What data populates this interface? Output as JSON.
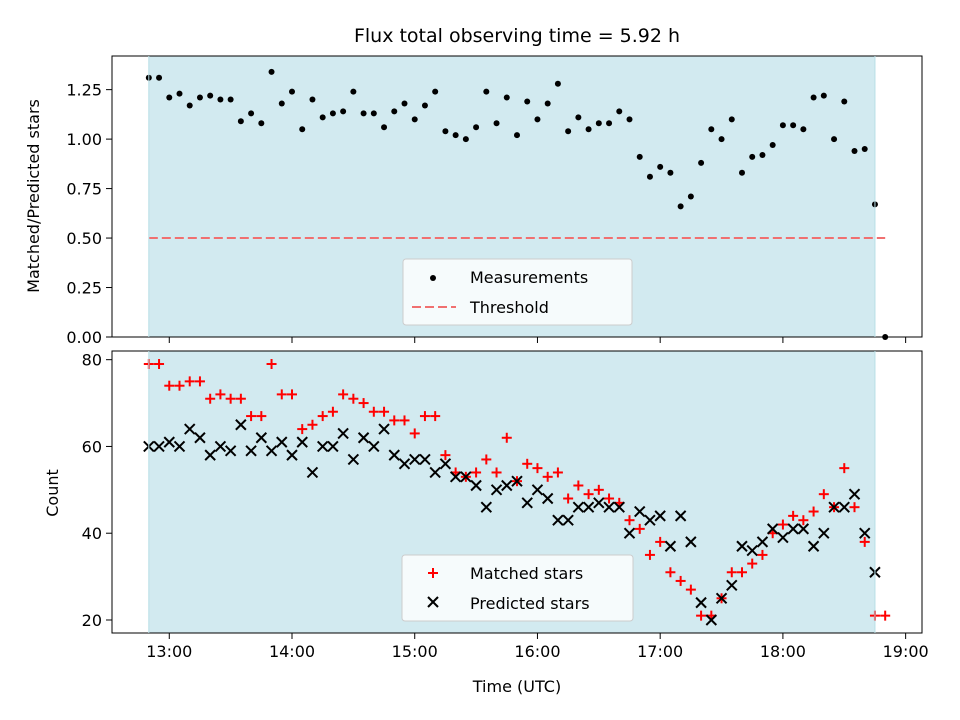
{
  "colors": {
    "observing_band": "#d2eaf0",
    "measurement": "#000000",
    "threshold": "#f07070",
    "matched": "#ff0000",
    "predicted": "#000000"
  },
  "chart_data": [
    {
      "type": "scatter",
      "title": "Flux total observing time = 5.92 h",
      "xlabel": "",
      "ylabel": "Matched/Predicted stars",
      "xlim": [
        "12:32",
        "19:08"
      ],
      "ylim": [
        0,
        1.42
      ],
      "x_ticks": [
        "13:00",
        "14:00",
        "15:00",
        "16:00",
        "17:00",
        "18:00",
        "19:00"
      ],
      "y_ticks": [
        "0.00",
        "0.25",
        "0.50",
        "0.75",
        "1.00",
        "1.25"
      ],
      "observing_band": [
        "12:50",
        "18:45"
      ],
      "threshold": 0.5,
      "legend": {
        "placement": "lower-center",
        "entries": [
          "Measurements",
          "Threshold"
        ]
      },
      "series": [
        {
          "name": "Measurements",
          "x": [
            "12:50",
            "12:55",
            "13:00",
            "13:05",
            "13:10",
            "13:15",
            "13:20",
            "13:25",
            "13:30",
            "13:35",
            "13:40",
            "13:45",
            "13:50",
            "13:55",
            "14:00",
            "14:05",
            "14:10",
            "14:15",
            "14:20",
            "14:25",
            "14:30",
            "14:35",
            "14:40",
            "14:45",
            "14:50",
            "14:55",
            "15:00",
            "15:05",
            "15:10",
            "15:15",
            "15:20",
            "15:25",
            "15:30",
            "15:35",
            "15:40",
            "15:45",
            "15:50",
            "15:55",
            "16:00",
            "16:05",
            "16:10",
            "16:15",
            "16:20",
            "16:25",
            "16:30",
            "16:35",
            "16:40",
            "16:45",
            "16:50",
            "16:55",
            "17:00",
            "17:05",
            "17:10",
            "17:15",
            "17:20",
            "17:25",
            "17:30",
            "17:35",
            "17:40",
            "17:45",
            "17:50",
            "17:55",
            "18:00",
            "18:05",
            "18:10",
            "18:15",
            "18:20",
            "18:25",
            "18:30",
            "18:35",
            "18:40",
            "18:45",
            "18:50"
          ],
          "y": [
            1.31,
            1.31,
            1.21,
            1.23,
            1.17,
            1.21,
            1.22,
            1.2,
            1.2,
            1.09,
            1.13,
            1.08,
            1.34,
            1.18,
            1.24,
            1.05,
            1.2,
            1.11,
            1.13,
            1.14,
            1.24,
            1.13,
            1.13,
            1.06,
            1.14,
            1.18,
            1.1,
            1.17,
            1.24,
            1.04,
            1.02,
            1.0,
            1.06,
            1.24,
            1.08,
            1.21,
            1.02,
            1.19,
            1.1,
            1.18,
            1.28,
            1.04,
            1.11,
            1.05,
            1.08,
            1.08,
            1.14,
            1.1,
            0.91,
            0.81,
            0.86,
            0.83,
            0.66,
            0.71,
            0.88,
            1.05,
            1.0,
            1.1,
            0.83,
            0.91,
            0.92,
            0.97,
            1.07,
            1.07,
            1.05,
            1.21,
            1.22,
            1.0,
            1.19,
            0.94,
            0.95,
            0.67,
            0.0
          ]
        },
        {
          "name": "Threshold",
          "x": [
            "12:50",
            "18:50"
          ],
          "y": [
            0.5,
            0.5
          ]
        }
      ]
    },
    {
      "type": "scatter",
      "title": "",
      "xlabel": "Time (UTC)",
      "ylabel": "Count",
      "xlim": [
        "12:32",
        "19:08"
      ],
      "ylim": [
        17,
        82
      ],
      "x_ticks": [
        "13:00",
        "14:00",
        "15:00",
        "16:00",
        "17:00",
        "18:00",
        "19:00"
      ],
      "y_ticks": [
        "20",
        "40",
        "60",
        "80"
      ],
      "observing_band": [
        "12:50",
        "18:45"
      ],
      "legend": {
        "placement": "lower-center",
        "entries": [
          "Matched stars",
          "Predicted stars"
        ]
      },
      "series": [
        {
          "name": "Matched stars",
          "marker": "plus",
          "x": [
            "12:50",
            "12:55",
            "13:00",
            "13:05",
            "13:10",
            "13:15",
            "13:20",
            "13:25",
            "13:30",
            "13:35",
            "13:40",
            "13:45",
            "13:50",
            "13:55",
            "14:00",
            "14:05",
            "14:10",
            "14:15",
            "14:20",
            "14:25",
            "14:30",
            "14:35",
            "14:40",
            "14:45",
            "14:50",
            "14:55",
            "15:00",
            "15:05",
            "15:10",
            "15:15",
            "15:20",
            "15:25",
            "15:30",
            "15:35",
            "15:40",
            "15:45",
            "15:50",
            "15:55",
            "16:00",
            "16:05",
            "16:10",
            "16:15",
            "16:20",
            "16:25",
            "16:30",
            "16:35",
            "16:40",
            "16:45",
            "16:50",
            "16:55",
            "17:00",
            "17:05",
            "17:10",
            "17:15",
            "17:20",
            "17:25",
            "17:30",
            "17:35",
            "17:40",
            "17:45",
            "17:50",
            "17:55",
            "18:00",
            "18:05",
            "18:10",
            "18:15",
            "18:20",
            "18:25",
            "18:30",
            "18:35",
            "18:40",
            "18:45",
            "18:50"
          ],
          "y": [
            79,
            79,
            74,
            74,
            75,
            75,
            71,
            72,
            71,
            71,
            67,
            67,
            79,
            72,
            72,
            64,
            65,
            67,
            68,
            72,
            71,
            70,
            68,
            68,
            66,
            66,
            63,
            67,
            67,
            58,
            54,
            53,
            54,
            57,
            54,
            62,
            52,
            56,
            55,
            53,
            54,
            48,
            51,
            49,
            50,
            48,
            47,
            43,
            41,
            35,
            38,
            31,
            29,
            27,
            21,
            21,
            25,
            31,
            31,
            33,
            35,
            40,
            42,
            44,
            43,
            45,
            49,
            46,
            55,
            46,
            38,
            21,
            21
          ]
        },
        {
          "name": "Predicted stars",
          "marker": "x",
          "x": [
            "12:50",
            "12:55",
            "13:00",
            "13:05",
            "13:10",
            "13:15",
            "13:20",
            "13:25",
            "13:30",
            "13:35",
            "13:40",
            "13:45",
            "13:50",
            "13:55",
            "14:00",
            "14:05",
            "14:10",
            "14:15",
            "14:20",
            "14:25",
            "14:30",
            "14:35",
            "14:40",
            "14:45",
            "14:50",
            "14:55",
            "15:00",
            "15:05",
            "15:10",
            "15:15",
            "15:20",
            "15:25",
            "15:30",
            "15:35",
            "15:40",
            "15:45",
            "15:50",
            "15:55",
            "16:00",
            "16:05",
            "16:10",
            "16:15",
            "16:20",
            "16:25",
            "16:30",
            "16:35",
            "16:40",
            "16:45",
            "16:50",
            "16:55",
            "17:00",
            "17:05",
            "17:10",
            "17:15",
            "17:20",
            "17:25",
            "17:30",
            "17:35",
            "17:40",
            "17:45",
            "17:50",
            "17:55",
            "18:00",
            "18:05",
            "18:10",
            "18:15",
            "18:20",
            "18:25",
            "18:30",
            "18:35",
            "18:40",
            "18:45",
            "18:50"
          ],
          "y": [
            60,
            60,
            61,
            60,
            64,
            62,
            58,
            60,
            59,
            65,
            59,
            62,
            59,
            61,
            58,
            61,
            54,
            60,
            60,
            63,
            57,
            62,
            60,
            64,
            58,
            56,
            57,
            57,
            54,
            56,
            53,
            53,
            51,
            46,
            50,
            51,
            52,
            47,
            50,
            48,
            43,
            43,
            46,
            46,
            47,
            46,
            46,
            40,
            45,
            43,
            44,
            37,
            44,
            38,
            24,
            20,
            25,
            28,
            37,
            36,
            38,
            41,
            39,
            41,
            41,
            37,
            40,
            46,
            46,
            49,
            40,
            31,
            null
          ]
        }
      ]
    }
  ]
}
